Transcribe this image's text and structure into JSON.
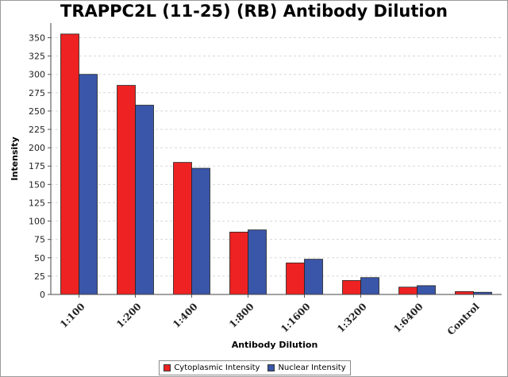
{
  "chart_data": {
    "type": "bar",
    "title": "TRAPPC2L (11-25) (RB) Antibody Dilution",
    "xlabel": "Antibody Dilution",
    "ylabel": "Intensity",
    "ylim": [
      0,
      370
    ],
    "yticks": [
      0,
      25,
      50,
      75,
      100,
      125,
      150,
      175,
      200,
      225,
      250,
      275,
      300,
      325,
      350
    ],
    "grid": true,
    "legend_position": "bottom",
    "categories": [
      "1:100",
      "1:200",
      "1:400",
      "1:800",
      "1:1600",
      "1:3200",
      "1:6400",
      "Control"
    ],
    "series": [
      {
        "name": "Cytoplasmic Intensity",
        "color": "#ee2222",
        "values": [
          355,
          285,
          180,
          85,
          43,
          19,
          10,
          4
        ]
      },
      {
        "name": "Nuclear Intensity",
        "color": "#3a56a8",
        "values": [
          300,
          258,
          172,
          88,
          48,
          23,
          12,
          3
        ]
      }
    ]
  }
}
